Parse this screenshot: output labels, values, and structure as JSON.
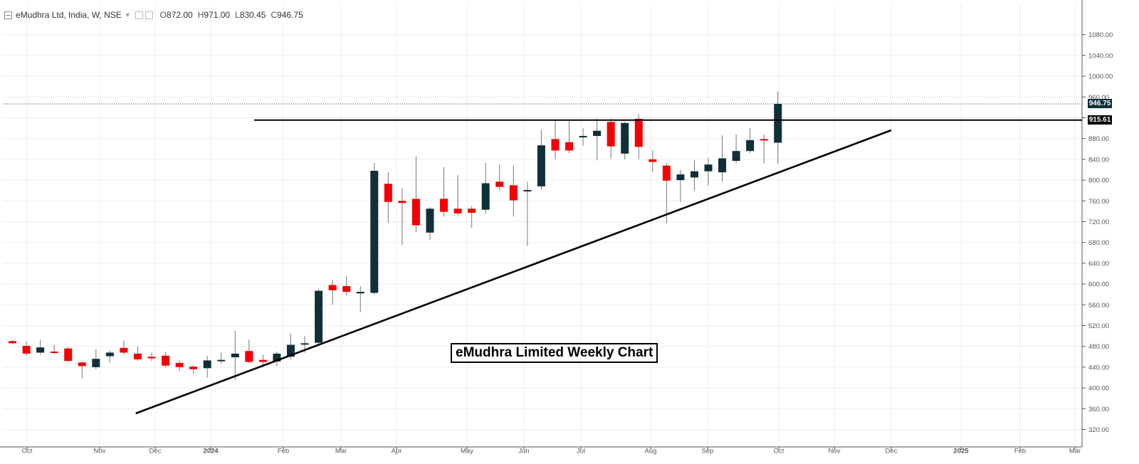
{
  "header": {
    "symbol": "eMudhra Ltd, India, W, NSE",
    "open_label": "O",
    "open": "872.00",
    "high_label": "H",
    "high": "971.00",
    "low_label": "L",
    "low": "830.45",
    "close_label": "C",
    "close": "946.75"
  },
  "price_labels": {
    "last": "946.75",
    "resistance": "915.61"
  },
  "colors": {
    "up": "#0f3038",
    "down": "#f30000",
    "axis_text": "#555555",
    "grid": "#ededed"
  },
  "chart_data": {
    "type": "candlestick",
    "title": "eMudhra Limited Weekly Chart",
    "ylim": [
      300,
      1100
    ],
    "y_ticks": [
      320,
      360,
      400,
      440,
      480,
      520,
      560,
      600,
      640,
      680,
      720,
      760,
      800,
      840,
      880,
      920,
      960,
      1000,
      1040,
      1080
    ],
    "y_tick_labels": [
      "320.00",
      "360.00",
      "400.00",
      "440.00",
      "480.00",
      "520.00",
      "560.00",
      "600.00",
      "640.00",
      "680.00",
      "720.00",
      "760.00",
      "800.00",
      "840.00",
      "880.00",
      "920.00",
      "960.00",
      "1000.00",
      "1040.00",
      "1080.00"
    ],
    "x_tick_labels": [
      "Oct",
      "Nov",
      "Dec",
      "2024",
      "Feb",
      "Mar",
      "Apr",
      "May",
      "Jun",
      "Jul",
      "Aug",
      "Sep",
      "Oct",
      "Nov",
      "Dec",
      "2025",
      "Feb",
      "Mar"
    ],
    "candles": [
      {
        "o": 490,
        "h": 492,
        "l": 484,
        "c": 486
      },
      {
        "o": 481,
        "h": 490,
        "l": 462,
        "c": 466
      },
      {
        "o": 468,
        "h": 493,
        "l": 464,
        "c": 478
      },
      {
        "o": 470,
        "h": 483,
        "l": 465,
        "c": 468
      },
      {
        "o": 476,
        "h": 478,
        "l": 450,
        "c": 452
      },
      {
        "o": 449,
        "h": 451,
        "l": 418,
        "c": 442
      },
      {
        "o": 440,
        "h": 475,
        "l": 436,
        "c": 456
      },
      {
        "o": 461,
        "h": 472,
        "l": 448,
        "c": 468
      },
      {
        "o": 477,
        "h": 491,
        "l": 464,
        "c": 468
      },
      {
        "o": 466,
        "h": 480,
        "l": 452,
        "c": 455
      },
      {
        "o": 460,
        "h": 468,
        "l": 452,
        "c": 457
      },
      {
        "o": 462,
        "h": 470,
        "l": 440,
        "c": 443
      },
      {
        "o": 448,
        "h": 453,
        "l": 432,
        "c": 440
      },
      {
        "o": 441,
        "h": 443,
        "l": 427,
        "c": 436
      },
      {
        "o": 438,
        "h": 462,
        "l": 420,
        "c": 453
      },
      {
        "o": 452,
        "h": 468,
        "l": 446,
        "c": 454
      },
      {
        "o": 459,
        "h": 510,
        "l": 415,
        "c": 466
      },
      {
        "o": 471,
        "h": 493,
        "l": 448,
        "c": 450
      },
      {
        "o": 454,
        "h": 464,
        "l": 440,
        "c": 450
      },
      {
        "o": 451,
        "h": 470,
        "l": 442,
        "c": 466
      },
      {
        "o": 460,
        "h": 505,
        "l": 455,
        "c": 483
      },
      {
        "o": 484,
        "h": 500,
        "l": 468,
        "c": 486
      },
      {
        "o": 487,
        "h": 590,
        "l": 485,
        "c": 587
      },
      {
        "o": 598,
        "h": 608,
        "l": 560,
        "c": 588
      },
      {
        "o": 596,
        "h": 616,
        "l": 578,
        "c": 585
      },
      {
        "o": 582,
        "h": 596,
        "l": 546,
        "c": 585
      },
      {
        "o": 583,
        "h": 833,
        "l": 580,
        "c": 818
      },
      {
        "o": 793,
        "h": 815,
        "l": 718,
        "c": 758
      },
      {
        "o": 760,
        "h": 785,
        "l": 675,
        "c": 756
      },
      {
        "o": 764,
        "h": 846,
        "l": 700,
        "c": 713
      },
      {
        "o": 699,
        "h": 748,
        "l": 684,
        "c": 745
      },
      {
        "o": 764,
        "h": 825,
        "l": 730,
        "c": 739
      },
      {
        "o": 745,
        "h": 810,
        "l": 732,
        "c": 736
      },
      {
        "o": 745,
        "h": 750,
        "l": 708,
        "c": 737
      },
      {
        "o": 743,
        "h": 833,
        "l": 735,
        "c": 794
      },
      {
        "o": 797,
        "h": 830,
        "l": 780,
        "c": 787
      },
      {
        "o": 790,
        "h": 828,
        "l": 730,
        "c": 761
      },
      {
        "o": 779,
        "h": 797,
        "l": 673,
        "c": 781
      },
      {
        "o": 788,
        "h": 897,
        "l": 782,
        "c": 867
      },
      {
        "o": 879,
        "h": 915,
        "l": 840,
        "c": 857
      },
      {
        "o": 873,
        "h": 914,
        "l": 852,
        "c": 857
      },
      {
        "o": 883,
        "h": 900,
        "l": 866,
        "c": 885
      },
      {
        "o": 885,
        "h": 918,
        "l": 838,
        "c": 895
      },
      {
        "o": 912,
        "h": 918,
        "l": 842,
        "c": 865
      },
      {
        "o": 851,
        "h": 912,
        "l": 840,
        "c": 910
      },
      {
        "o": 918,
        "h": 927,
        "l": 840,
        "c": 864
      },
      {
        "o": 840,
        "h": 858,
        "l": 815,
        "c": 835
      },
      {
        "o": 828,
        "h": 833,
        "l": 717,
        "c": 799
      },
      {
        "o": 800,
        "h": 820,
        "l": 758,
        "c": 811
      },
      {
        "o": 805,
        "h": 838,
        "l": 780,
        "c": 817
      },
      {
        "o": 817,
        "h": 843,
        "l": 790,
        "c": 830
      },
      {
        "o": 815,
        "h": 886,
        "l": 797,
        "c": 842
      },
      {
        "o": 837,
        "h": 888,
        "l": 832,
        "c": 856
      },
      {
        "o": 856,
        "h": 900,
        "l": 852,
        "c": 877
      },
      {
        "o": 879,
        "h": 888,
        "l": 832,
        "c": 878
      },
      {
        "o": 872,
        "h": 971,
        "l": 830.45,
        "c": 946.75
      }
    ],
    "lines": [
      {
        "name": "resistance",
        "kind": "horizontal",
        "y": 915.61
      },
      {
        "name": "trendline",
        "kind": "segment",
        "from": {
          "date": "2023-11-26",
          "price": 351
        },
        "to": {
          "date": "2024-12-10",
          "price": 896
        }
      }
    ],
    "grid": true
  }
}
